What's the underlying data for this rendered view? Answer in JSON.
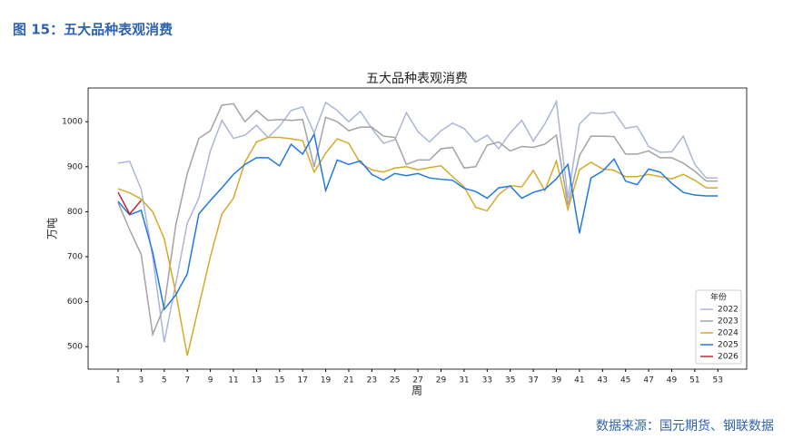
{
  "header": {
    "title": "图 15：五大品种表观消费"
  },
  "chart_data": {
    "type": "line",
    "title": "五大品种表观消费",
    "x_label": "周",
    "y_label": "万吨",
    "x": [
      1,
      2,
      3,
      4,
      5,
      6,
      7,
      8,
      9,
      10,
      11,
      12,
      13,
      14,
      15,
      16,
      17,
      18,
      19,
      20,
      21,
      22,
      23,
      24,
      25,
      26,
      27,
      28,
      29,
      30,
      31,
      32,
      33,
      34,
      35,
      36,
      37,
      38,
      39,
      40,
      41,
      42,
      43,
      44,
      45,
      46,
      47,
      48,
      49,
      50,
      51,
      52,
      53
    ],
    "series": [
      {
        "name": "2022",
        "color": "#a9b6d6",
        "values": [
          908,
          912,
          850,
          700,
          510,
          640,
          775,
          830,
          935,
          1003,
          963,
          970,
          992,
          965,
          990,
          1025,
          1033,
          975,
          1043,
          1025,
          1000,
          1023,
          985,
          952,
          960,
          1020,
          978,
          955,
          980,
          997,
          985,
          955,
          970,
          940,
          975,
          1003,
          957,
          995,
          1045,
          830,
          995,
          1020,
          1018,
          1022,
          985,
          990,
          945,
          932,
          933,
          968,
          905,
          875,
          875
        ]
      },
      {
        "name": "2023",
        "color": "#a3a3a3",
        "values": [
          820,
          760,
          705,
          527,
          590,
          770,
          885,
          963,
          980,
          1037,
          1040,
          1000,
          1025,
          1003,
          1005,
          1003,
          1005,
          900,
          1010,
          1000,
          980,
          988,
          988,
          968,
          965,
          905,
          915,
          915,
          940,
          943,
          897,
          900,
          948,
          955,
          935,
          945,
          943,
          950,
          970,
          815,
          925,
          968,
          968,
          967,
          928,
          928,
          935,
          920,
          920,
          908,
          890,
          868,
          868
        ]
      },
      {
        "name": "2024",
        "color": "#d4aa2b",
        "values": [
          851,
          842,
          828,
          800,
          740,
          620,
          480,
          590,
          700,
          795,
          830,
          910,
          955,
          965,
          965,
          962,
          958,
          888,
          930,
          962,
          952,
          908,
          893,
          888,
          897,
          900,
          893,
          898,
          902,
          878,
          855,
          810,
          802,
          838,
          858,
          855,
          892,
          847,
          913,
          805,
          893,
          910,
          895,
          892,
          878,
          878,
          883,
          878,
          873,
          883,
          870,
          853,
          853
        ]
      },
      {
        "name": "2025",
        "color": "#1f78e6",
        "values": [
          823,
          793,
          803,
          710,
          583,
          615,
          662,
          795,
          825,
          853,
          883,
          905,
          920,
          920,
          902,
          950,
          928,
          972,
          847,
          915,
          905,
          913,
          883,
          870,
          885,
          880,
          885,
          875,
          872,
          870,
          852,
          845,
          830,
          853,
          857,
          830,
          843,
          850,
          873,
          905,
          752,
          875,
          890,
          917,
          868,
          860,
          895,
          888,
          863,
          843,
          837,
          835,
          835
        ]
      },
      {
        "name": "2026",
        "color": "#c0282d",
        "values": [
          843,
          795,
          825,
          null,
          null,
          null,
          null,
          null,
          null,
          null,
          null,
          null,
          null,
          null,
          null,
          null,
          null,
          null,
          null,
          null,
          null,
          null,
          null,
          null,
          null,
          null,
          null,
          null,
          null,
          null,
          null,
          null,
          null,
          null,
          null,
          null,
          null,
          null,
          null,
          null,
          null,
          null,
          null,
          null,
          null,
          null,
          null,
          null,
          null,
          null,
          null,
          null,
          null
        ]
      }
    ],
    "xlim": [
      -1.6,
      55.5
    ],
    "xticks": [
      1,
      3,
      5,
      7,
      9,
      11,
      13,
      15,
      17,
      19,
      21,
      23,
      25,
      27,
      29,
      31,
      33,
      35,
      37,
      39,
      41,
      43,
      45,
      47,
      49,
      51,
      53
    ],
    "ylim": [
      450,
      1075
    ],
    "yticks": [
      500,
      600,
      700,
      800,
      900,
      1000
    ],
    "legend_title": "年份",
    "legend": "lower right"
  },
  "footer": {
    "source": "数据来源：国元期货、钢联数据"
  }
}
